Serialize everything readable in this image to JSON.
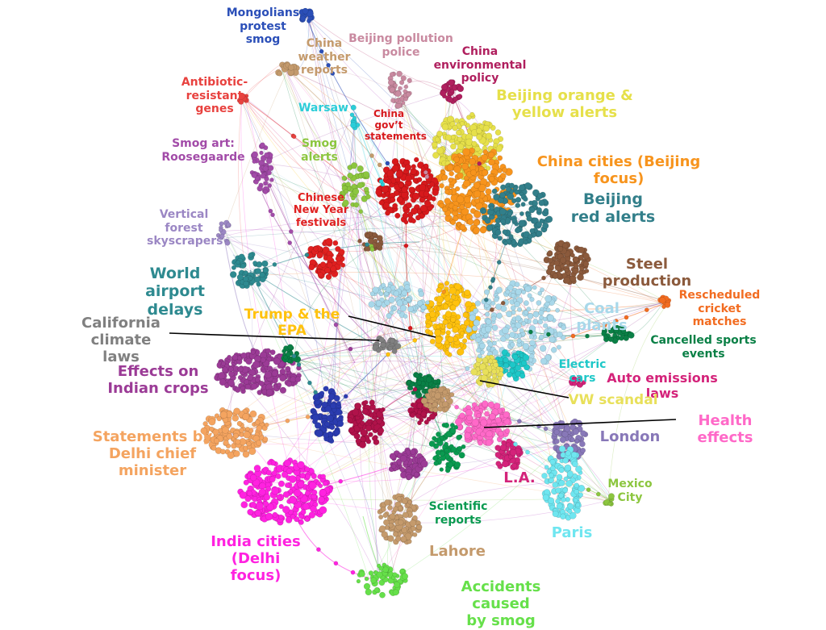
{
  "clusters": [
    {
      "id": "mongolians",
      "label": "Mongolians\nprotest smog",
      "color": "#2b4fb8"
    },
    {
      "id": "weather",
      "label": "China\nweather\nreports",
      "color": "#c49a6c"
    },
    {
      "id": "police",
      "label": "Beijing pollution\npolice",
      "color": "#c98aa0"
    },
    {
      "id": "envpolicy",
      "label": "China\nenvironmental policy",
      "color": "#b01f5e"
    },
    {
      "id": "antibiotic",
      "label": "Antibiotic-resistant\ngenes",
      "color": "#e8423f"
    },
    {
      "id": "orangeyellow",
      "label": "Beijing orange &\nyellow alerts",
      "color": "#e6e04a"
    },
    {
      "id": "warsaw",
      "label": "Warsaw",
      "color": "#2ccdd8"
    },
    {
      "id": "govt",
      "label": "China\ngov’t\nstatements",
      "color": "#d7191c"
    },
    {
      "id": "smogart",
      "label": "Smog art:\nRoosegaarde",
      "color": "#a24ba8"
    },
    {
      "id": "smogalerts",
      "label": "Smog\nalerts",
      "color": "#8cc63f"
    },
    {
      "id": "chinacities",
      "label": "China cities (Beijing focus)",
      "color": "#f7941d"
    },
    {
      "id": "chinesenewyear",
      "label": "Chinese\nNew Year\nfestivals",
      "color": "#e02020"
    },
    {
      "id": "redalerts",
      "label": "Beijing\nred alerts",
      "color": "#327f8a"
    },
    {
      "id": "forest",
      "label": "Vertical\nforest\nskyscrapers",
      "color": "#9b87c4"
    },
    {
      "id": "steel",
      "label": "Steel production",
      "color": "#8b5a3c"
    },
    {
      "id": "airport",
      "label": "World airport\ndelays",
      "color": "#2e8a90"
    },
    {
      "id": "cricket",
      "label": "Rescheduled\ncricket matches",
      "color": "#f26c21"
    },
    {
      "id": "trump",
      "label": "Trump & the EPA",
      "color": "#ffc20e"
    },
    {
      "id": "coal",
      "label": "Coal plants",
      "color": "#a8d8ea"
    },
    {
      "id": "california",
      "label": "California\nclimate laws",
      "color": "#808080"
    },
    {
      "id": "sports",
      "label": "Cancelled sports events",
      "color": "#0a8046"
    },
    {
      "id": "electric",
      "label": "Electric cars",
      "color": "#1ec8c8"
    },
    {
      "id": "indiancrops",
      "label": "Effects on\nIndian crops",
      "color": "#9b3b96"
    },
    {
      "id": "autoemissions",
      "label": "Auto emissions laws",
      "color": "#d4237a"
    },
    {
      "id": "vw",
      "label": "VW scandal",
      "color": "#e8e05a"
    },
    {
      "id": "health",
      "label": "Health effects",
      "color": "#ff69c8"
    },
    {
      "id": "delhiminister",
      "label": "Statements by\nDelhi chief minister",
      "color": "#f4a460"
    },
    {
      "id": "london",
      "label": "London",
      "color": "#8878b8"
    },
    {
      "id": "la",
      "label": "L.A.",
      "color": "#d4237a"
    },
    {
      "id": "mexico",
      "label": "Mexico\nCity",
      "color": "#8cc63f"
    },
    {
      "id": "scientific",
      "label": "Scientific\nreports",
      "color": "#0a9a50"
    },
    {
      "id": "paris",
      "label": "Paris",
      "color": "#6fe6f0"
    },
    {
      "id": "indiacities",
      "label": "India cities\n(Delhi focus)",
      "color": "#ff22e0"
    },
    {
      "id": "lahore",
      "label": "Lahore",
      "color": "#c49a6c"
    },
    {
      "id": "accidents",
      "label": "Accidents caused\nby smog",
      "color": "#66e04a"
    }
  ],
  "extra_colors": {
    "navy": "#2b3cb0",
    "crimson": "#b0124a",
    "darkgreen": "#0a8046",
    "edge": "#b8b8c8",
    "purple_edge": "#b040c0"
  }
}
